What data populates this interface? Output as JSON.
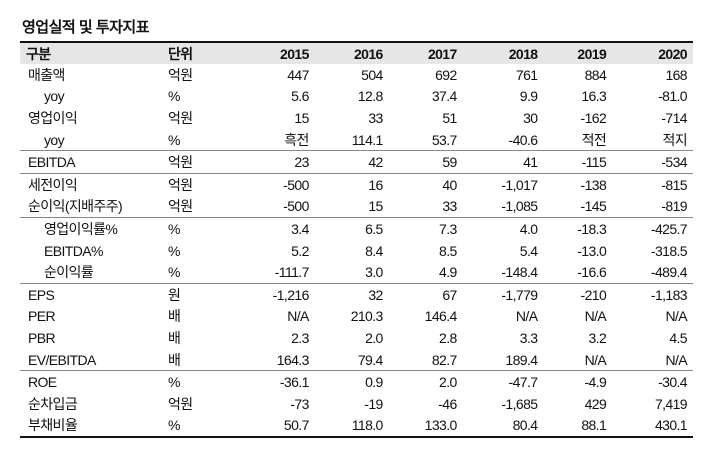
{
  "title": "영업실적 및 투자지표",
  "header": {
    "label": "구분",
    "unit": "단위",
    "years": [
      "2015",
      "2016",
      "2017",
      "2018",
      "2019",
      "2020"
    ]
  },
  "groups": [
    {
      "rows": [
        {
          "label": "매출액",
          "unit": "억원",
          "indent": false,
          "values": [
            "447",
            "504",
            "692",
            "761",
            "884",
            "168"
          ]
        },
        {
          "label": "yoy",
          "unit": "%",
          "indent": true,
          "values": [
            "5.6",
            "12.8",
            "37.4",
            "9.9",
            "16.3",
            "-81.0"
          ]
        },
        {
          "label": "영업이익",
          "unit": "억원",
          "indent": false,
          "values": [
            "15",
            "33",
            "51",
            "30",
            "-162",
            "-714"
          ]
        },
        {
          "label": "yoy",
          "unit": "%",
          "indent": true,
          "values": [
            "흑전",
            "114.1",
            "53.7",
            "-40.6",
            "적전",
            "적지"
          ]
        }
      ]
    },
    {
      "rows": [
        {
          "label": "EBITDA",
          "unit": "억원",
          "indent": false,
          "values": [
            "23",
            "42",
            "59",
            "41",
            "-115",
            "-534"
          ]
        }
      ]
    },
    {
      "rows": [
        {
          "label": "세전이익",
          "unit": "억원",
          "indent": false,
          "values": [
            "-500",
            "16",
            "40",
            "-1,017",
            "-138",
            "-815"
          ]
        },
        {
          "label": "순이익(지배주주)",
          "unit": "억원",
          "indent": false,
          "values": [
            "-500",
            "15",
            "33",
            "-1,085",
            "-145",
            "-819"
          ]
        }
      ]
    },
    {
      "rows": [
        {
          "label": "영업이익률%",
          "unit": "%",
          "indent": true,
          "values": [
            "3.4",
            "6.5",
            "7.3",
            "4.0",
            "-18.3",
            "-425.7"
          ]
        },
        {
          "label": "EBITDA%",
          "unit": "%",
          "indent": true,
          "values": [
            "5.2",
            "8.4",
            "8.5",
            "5.4",
            "-13.0",
            "-318.5"
          ]
        },
        {
          "label": "순이익률",
          "unit": "%",
          "indent": true,
          "values": [
            "-111.7",
            "3.0",
            "4.9",
            "-148.4",
            "-16.6",
            "-489.4"
          ]
        }
      ]
    },
    {
      "rows": [
        {
          "label": "EPS",
          "unit": "원",
          "indent": false,
          "values": [
            "-1,216",
            "32",
            "67",
            "-1,779",
            "-210",
            "-1,183"
          ]
        },
        {
          "label": "PER",
          "unit": "배",
          "indent": false,
          "values": [
            "N/A",
            "210.3",
            "146.4",
            "N/A",
            "N/A",
            "N/A"
          ]
        },
        {
          "label": "PBR",
          "unit": "배",
          "indent": false,
          "values": [
            "2.3",
            "2.0",
            "2.8",
            "3.3",
            "3.2",
            "4.5"
          ]
        },
        {
          "label": "EV/EBITDA",
          "unit": "배",
          "indent": false,
          "values": [
            "164.3",
            "79.4",
            "82.7",
            "189.4",
            "N/A",
            "N/A"
          ]
        }
      ]
    },
    {
      "rows": [
        {
          "label": "ROE",
          "unit": "%",
          "indent": false,
          "values": [
            "-36.1",
            "0.9",
            "2.0",
            "-47.7",
            "-4.9",
            "-30.4"
          ]
        },
        {
          "label": "순차입금",
          "unit": "억원",
          "indent": false,
          "values": [
            "-73",
            "-19",
            "-46",
            "-1,685",
            "429",
            "7,419"
          ]
        },
        {
          "label": "부채비율",
          "unit": "%",
          "indent": false,
          "values": [
            "50.7",
            "118.0",
            "133.0",
            "80.4",
            "88.1",
            "430.1"
          ]
        }
      ]
    }
  ]
}
